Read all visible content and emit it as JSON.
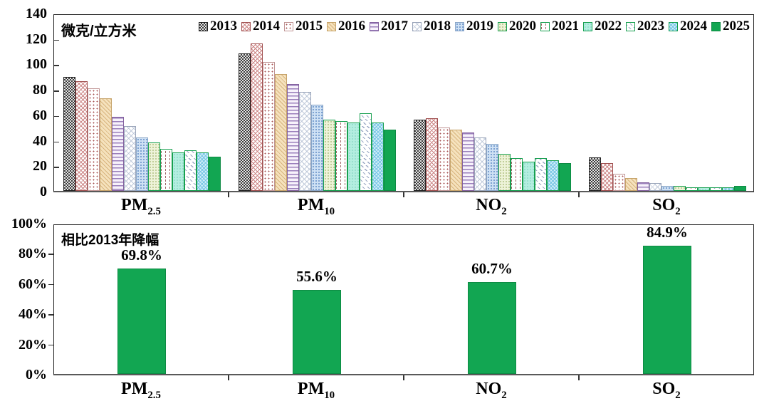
{
  "page": {
    "background": "#ffffff"
  },
  "colors": {
    "accent_green": "#12a652",
    "green_border": "#18a050",
    "axis": "#333333"
  },
  "chart_data": [
    {
      "type": "grouped-bar",
      "unit_label": "微克/立方米",
      "ylim": [
        0,
        140
      ],
      "yticks": [
        0,
        20,
        40,
        60,
        80,
        100,
        120,
        140
      ],
      "grid": false,
      "legend_position": "top-inside-right",
      "categories": [
        "PM2.5",
        "PM10",
        "NO2",
        "SO2"
      ],
      "categories_rich": [
        {
          "base": "PM",
          "sub": "2.5"
        },
        {
          "base": "PM",
          "sub": "10"
        },
        {
          "base": "NO",
          "sub": "2"
        },
        {
          "base": "SO",
          "sub": "2"
        }
      ],
      "series": [
        {
          "name": "2013",
          "pattern": "check-dark",
          "values": [
            89.5,
            108,
            56,
            26.5
          ]
        },
        {
          "name": "2014",
          "pattern": "crosshatch-red",
          "values": [
            86,
            116,
            57,
            22
          ]
        },
        {
          "name": "2015",
          "pattern": "dots-red",
          "values": [
            80.5,
            101.5,
            50,
            13.5
          ]
        },
        {
          "name": "2016",
          "pattern": "diag-tan",
          "values": [
            73,
            92,
            48,
            10
          ]
        },
        {
          "name": "2017",
          "pattern": "hlines-purple",
          "values": [
            58,
            84,
            46,
            7
          ]
        },
        {
          "name": "2018",
          "pattern": "crosshatch-gray",
          "values": [
            51,
            78,
            42,
            6
          ]
        },
        {
          "name": "2019",
          "pattern": "dots-blue",
          "values": [
            42,
            68,
            37,
            4
          ]
        },
        {
          "name": "2020",
          "pattern": "dots-green",
          "values": [
            38,
            56,
            29,
            4
          ]
        },
        {
          "name": "2021",
          "pattern": "vdash-white",
          "values": [
            33,
            55,
            26,
            3
          ]
        },
        {
          "name": "2022",
          "pattern": "fill-cyan",
          "values": [
            30,
            54,
            23,
            3
          ]
        },
        {
          "name": "2023",
          "pattern": "diag-speck",
          "values": [
            32,
            61,
            26,
            3
          ]
        },
        {
          "name": "2024",
          "pattern": "crosshatch-cyan",
          "values": [
            30.5,
            54,
            24,
            3
          ]
        },
        {
          "name": "2025",
          "pattern": "solid-green",
          "values": [
            27,
            48,
            22,
            4
          ]
        }
      ]
    },
    {
      "type": "bar",
      "title": "相比2013年降幅",
      "ylim": [
        0,
        100
      ],
      "yticks": [
        "0%",
        "20%",
        "40%",
        "60%",
        "80%",
        "100%"
      ],
      "grid": false,
      "categories": [
        "PM2.5",
        "PM10",
        "NO2",
        "SO2"
      ],
      "categories_rich": [
        {
          "base": "PM",
          "sub": "2.5"
        },
        {
          "base": "PM",
          "sub": "10"
        },
        {
          "base": "NO",
          "sub": "2"
        },
        {
          "base": "SO",
          "sub": "2"
        }
      ],
      "values": [
        69.8,
        55.6,
        60.7,
        84.9
      ],
      "value_labels": [
        "69.8%",
        "55.6%",
        "60.7%",
        "84.9%"
      ],
      "bar_color": "#12a652"
    }
  ]
}
